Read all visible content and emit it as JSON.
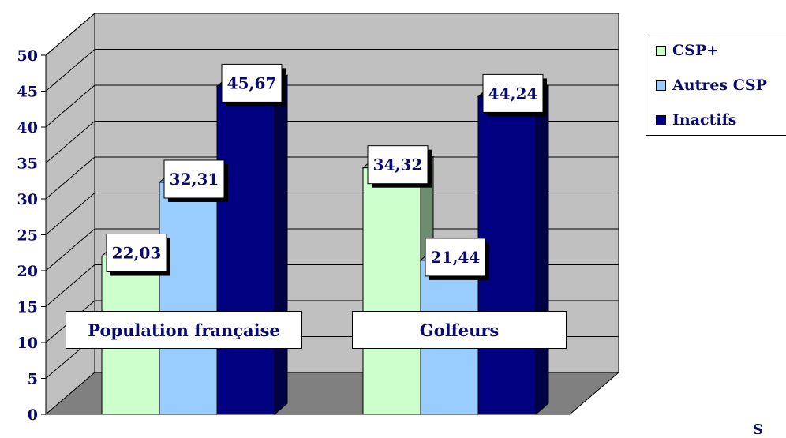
{
  "chart_data": {
    "type": "bar",
    "categories": [
      "Population française",
      "Golfeurs"
    ],
    "series": [
      {
        "name": "CSP+",
        "values": [
          22.03,
          34.32
        ],
        "labels": [
          "22,03",
          "34,32"
        ]
      },
      {
        "name": "Autres CSP",
        "values": [
          32.31,
          21.44
        ],
        "labels": [
          "32,31",
          "21,44"
        ]
      },
      {
        "name": "Inactifs",
        "values": [
          45.67,
          44.24
        ],
        "labels": [
          "45,67",
          "44,24"
        ]
      }
    ],
    "y_ticks": [
      "0",
      "5",
      "10",
      "15",
      "20",
      "25",
      "30",
      "35",
      "40",
      "45",
      "50"
    ],
    "ylim": [
      0,
      50
    ],
    "grid": true,
    "three_d": true,
    "legend_position": "right",
    "title": "",
    "xlabel": "",
    "ylabel": ""
  },
  "colors": {
    "CSP+": "#ccffcc",
    "Autres CSP": "#99ccff",
    "Inactifs": "#000080",
    "wall": "#c0c0c0",
    "floor": "#808080",
    "text": "#0a0a6e"
  },
  "legend": {
    "items": [
      "CSP+",
      "Autres CSP",
      "Inactifs"
    ]
  },
  "footer": {
    "source_fragment": "S"
  }
}
